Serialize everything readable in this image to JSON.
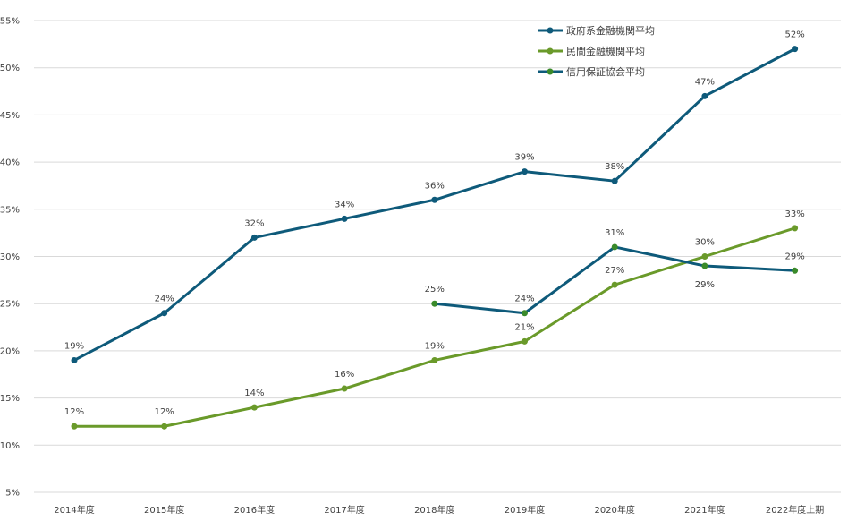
{
  "chart_data": {
    "type": "line",
    "categories": [
      "2014年度",
      "2015年度",
      "2016年度",
      "2017年度",
      "2018年度",
      "2019年度",
      "2020年度",
      "2021年度",
      "2022年度上期"
    ],
    "ylim": [
      5,
      55
    ],
    "ytick_step": 5,
    "ytick_suffix": "%",
    "grid": true,
    "legend_position": "top-right",
    "series": [
      {
        "name": "政府系金融機関平均",
        "color": "#0e5a7a",
        "values": [
          19,
          24,
          32,
          34,
          36,
          39,
          38,
          47,
          52
        ],
        "labels": [
          "19%",
          "24%",
          "32%",
          "34%",
          "36%",
          "39%",
          "38%",
          "47%",
          "52%"
        ],
        "label_pos": [
          "above",
          "above",
          "above",
          "above",
          "above",
          "above",
          "above",
          "above",
          "above"
        ]
      },
      {
        "name": "民間金融機関平均",
        "color": "#6a9a2a",
        "values": [
          12,
          12,
          14,
          16,
          19,
          21,
          27,
          30,
          33
        ],
        "labels": [
          "12%",
          "12%",
          "14%",
          "16%",
          "19%",
          "21%",
          "27%",
          "30%",
          "33%"
        ],
        "label_pos": [
          "above",
          "above",
          "above",
          "above",
          "above",
          "above",
          "above",
          "above",
          "above"
        ]
      },
      {
        "name": "信用保証協会平均",
        "color": "#0e5a7a",
        "marker_color": "#3a8a2a",
        "values": [
          null,
          null,
          null,
          null,
          25,
          24,
          31,
          29,
          28.5
        ],
        "labels": [
          "",
          "",
          "",
          "",
          "25%",
          "24%",
          "31%",
          "29%",
          "29%"
        ],
        "label_pos": [
          "above",
          "above",
          "above",
          "above",
          "above",
          "above",
          "above",
          "below",
          "above"
        ]
      }
    ]
  }
}
